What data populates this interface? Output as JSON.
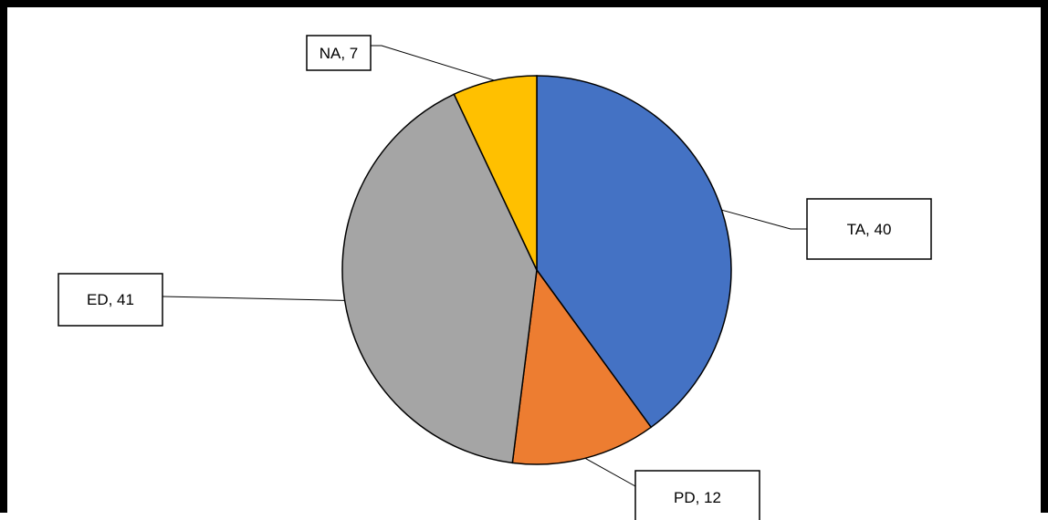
{
  "chart_data": {
    "type": "pie",
    "categories": [
      "TA",
      "PD",
      "ED",
      "NA"
    ],
    "values": [
      40,
      12,
      41,
      7
    ],
    "labels": [
      "TA, 40",
      "PD, 12",
      "ED, 41",
      "NA, 7"
    ],
    "colors": [
      "#4472C4",
      "#ED7D31",
      "#A5A5A5",
      "#FFC000"
    ],
    "start_angle_deg": 0,
    "direction": "clockwise",
    "legend": "none"
  }
}
